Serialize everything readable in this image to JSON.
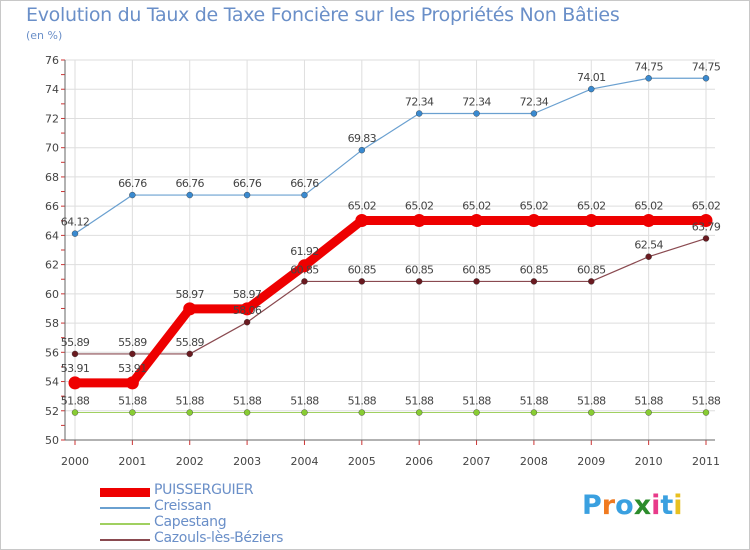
{
  "title": "Evolution du Taux de Taxe Foncière sur les Propriétés Non Bâties",
  "subtitle": "(en %)",
  "logo": {
    "text": "Proxiti",
    "colors": [
      "#3aa0e0",
      "#f07a20",
      "#3aa0e0",
      "#2c8c2c",
      "#e83a8a",
      "#3aa0e0",
      "#e8c020"
    ]
  },
  "chart_data": {
    "type": "line",
    "title": "Evolution du Taux de Taxe Foncière sur les Propriétés Non Bâties",
    "ylabel": "(en %)",
    "xlabel": "",
    "ylim": [
      50,
      76
    ],
    "yticks": [
      50,
      52,
      54,
      56,
      58,
      60,
      62,
      64,
      66,
      68,
      70,
      72,
      74,
      76
    ],
    "categories": [
      "2000",
      "2001",
      "2002",
      "2003",
      "2004",
      "2005",
      "2006",
      "2007",
      "2008",
      "2009",
      "2010",
      "2011"
    ],
    "grid": true,
    "series": [
      {
        "name": "Capestang",
        "color": "#a0d060",
        "marker": "#88cc33",
        "width": 1,
        "values": [
          51.88,
          51.88,
          51.88,
          51.88,
          51.88,
          51.88,
          51.88,
          51.88,
          51.88,
          51.88,
          51.88,
          51.88
        ],
        "labels": [
          "51.88",
          "51.88",
          "51.88",
          "51.88",
          "51.88",
          "51.88",
          "51.88",
          "51.88",
          "51.88",
          "51.88",
          "51.88",
          "51.88"
        ]
      },
      {
        "name": "Cazouls-lès-Béziers",
        "color": "#8a4a50",
        "marker": "#6a1a20",
        "width": 1.2,
        "values": [
          55.89,
          55.89,
          55.89,
          58.06,
          60.85,
          60.85,
          60.85,
          60.85,
          60.85,
          60.85,
          62.54,
          63.79
        ],
        "labels": [
          "55.89",
          "55.89",
          "55.89",
          "58.06",
          "60.85",
          "60.85",
          "60.85",
          "60.85",
          "60.85",
          "60.85",
          "62.54",
          "63.79"
        ]
      },
      {
        "name": "Creissan",
        "color": "#6aa0d0",
        "marker": "#3a8ad0",
        "width": 1.2,
        "values": [
          64.12,
          66.76,
          66.76,
          66.76,
          66.76,
          69.83,
          72.34,
          72.34,
          72.34,
          74.01,
          74.75,
          74.75
        ],
        "labels": [
          "64.12",
          "66.76",
          "66.76",
          "66.76",
          "66.76",
          "69.83",
          "72.34",
          "72.34",
          "72.34",
          "74.01",
          "74.75",
          "74.75"
        ]
      },
      {
        "name": "PUISSERGUIER",
        "color": "#ee0000",
        "marker": "#ee0000",
        "width": 9,
        "values": [
          53.91,
          53.91,
          58.97,
          58.97,
          61.92,
          65.02,
          65.02,
          65.02,
          65.02,
          65.02,
          65.02,
          65.02
        ],
        "labels": [
          "53.91",
          "53.91",
          "58.97",
          "58.97",
          "61.92",
          "65.02",
          "65.02",
          "65.02",
          "65.02",
          "65.02",
          "65.02",
          "65.02"
        ]
      }
    ],
    "legend": [
      "PUISSERGUIER",
      "Creissan",
      "Capestang",
      "Cazouls-lès-Béziers"
    ]
  }
}
